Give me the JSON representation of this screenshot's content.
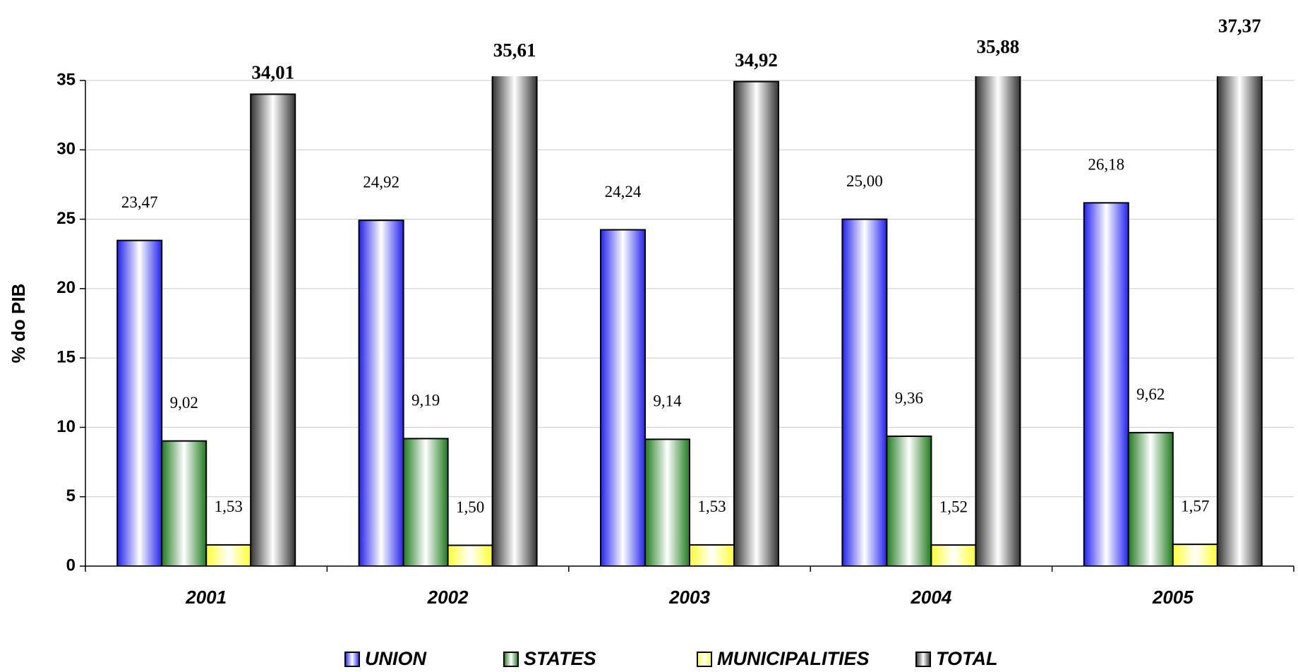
{
  "chart_data": {
    "type": "bar",
    "y_label": "% do PIB",
    "categories": [
      "2001",
      "2002",
      "2003",
      "2004",
      "2005"
    ],
    "series": [
      {
        "name": "UNION",
        "color": "#2222ee",
        "values": [
          23.47,
          24.92,
          24.24,
          25,
          26.18
        ],
        "value_labels": [
          "23,47",
          "24,92",
          "24,24",
          "25,00",
          "26,18"
        ]
      },
      {
        "name": "STATES",
        "color": "#1e7b1e",
        "values": [
          9.02,
          9.19,
          9.14,
          9.36,
          9.62
        ],
        "value_labels": [
          "9,02",
          "9,19",
          "9,14",
          "9,36",
          "9,62"
        ]
      },
      {
        "name": "MUNICIPALITIES",
        "color": "#ffff33",
        "values": [
          1.53,
          1.5,
          1.53,
          1.52,
          1.57
        ],
        "value_labels": [
          "1,53",
          "1,50",
          "1,53",
          "1,52",
          "1,57"
        ]
      },
      {
        "name": "TOTAL",
        "color": "#333333",
        "values": [
          34.01,
          35.61,
          34.92,
          35.88,
          37.37
        ],
        "value_labels": [
          "34,01",
          "35,61",
          "34,92",
          "35,88",
          "37,37"
        ]
      }
    ],
    "ylim": [
      0,
      35
    ],
    "yticks": [
      0,
      5,
      10,
      15,
      20,
      25,
      30,
      35
    ],
    "grid": true,
    "legend": "bottom"
  }
}
